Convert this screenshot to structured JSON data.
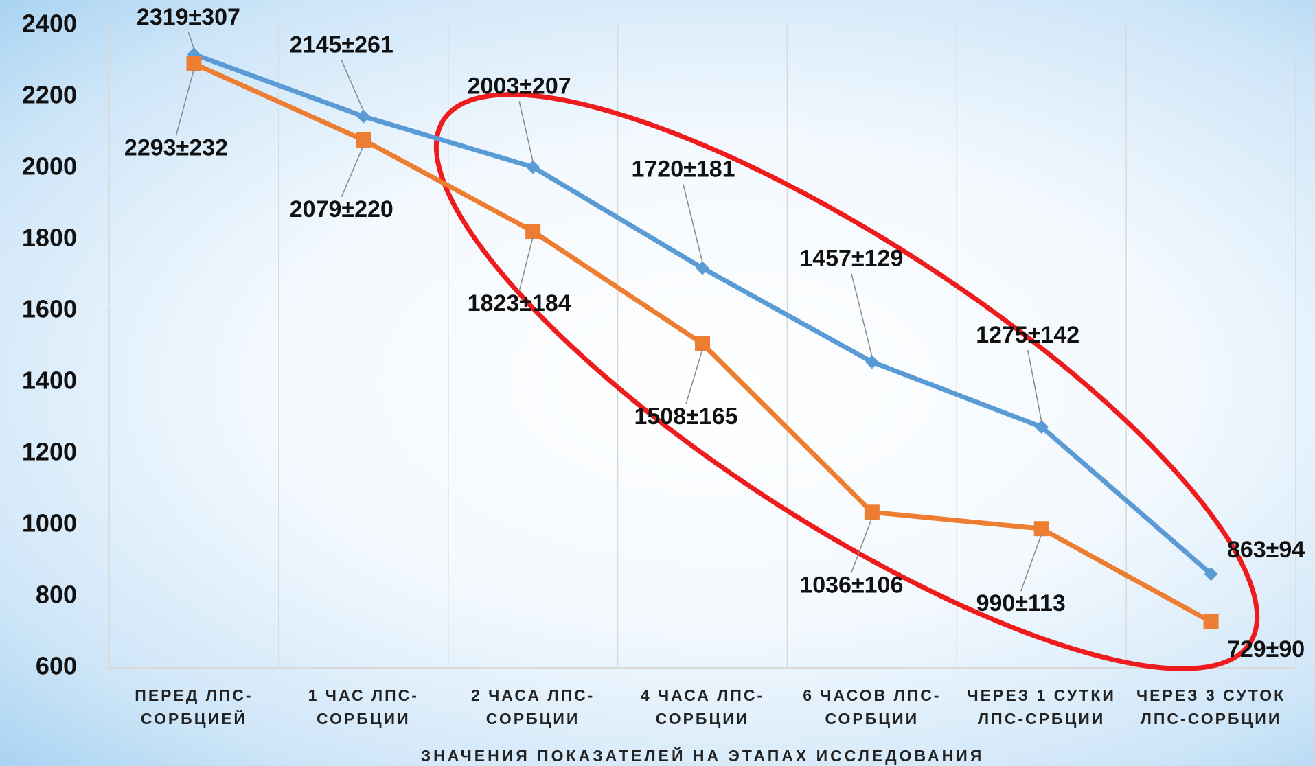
{
  "chart_data": {
    "type": "line",
    "x_label": "ЗНАЧЕНИЯ ПОКАЗАТЕЛЕЙ НА ЭТАПАХ ИССЛЕДОВАНИЯ",
    "categories": [
      "ПЕРЕД ЛПС-СОРБЦИЕЙ",
      "1 ЧАС ЛПС-СОРБЦИИ",
      "2 ЧАСА ЛПС-СОРБЦИИ",
      "4 ЧАСА ЛПС-СОРБЦИИ",
      "6 ЧАСОВ ЛПС-СОРБЦИИ",
      "ЧЕРЕЗ 1 СУТКИ ЛПС-СРБЦИИ",
      "ЧЕРЕЗ 3 СУТОК ЛПС-СОРБЦИИ"
    ],
    "series": [
      {
        "color": "#5b9bd5",
        "marker": "diamond",
        "values": [
          2319,
          2145,
          2003,
          1720,
          1457,
          1275,
          863
        ],
        "value_labels": [
          "2319±307",
          "2145±261",
          "2003±207",
          "1720±181",
          "1457±129",
          "1275±142",
          "863±94"
        ]
      },
      {
        "color": "#ed7d31",
        "marker": "square",
        "values": [
          2293,
          2079,
          1823,
          1508,
          1036,
          990,
          729
        ],
        "value_labels": [
          "2293±232",
          "2079±220",
          "1823±184",
          "1508±165",
          "1036±106",
          "990±113",
          "729±90"
        ]
      }
    ],
    "ylim": [
      600,
      2400
    ],
    "yticks": [
      600,
      800,
      1000,
      1200,
      1400,
      1600,
      1800,
      2000,
      2200,
      2400
    ],
    "grid": true
  }
}
